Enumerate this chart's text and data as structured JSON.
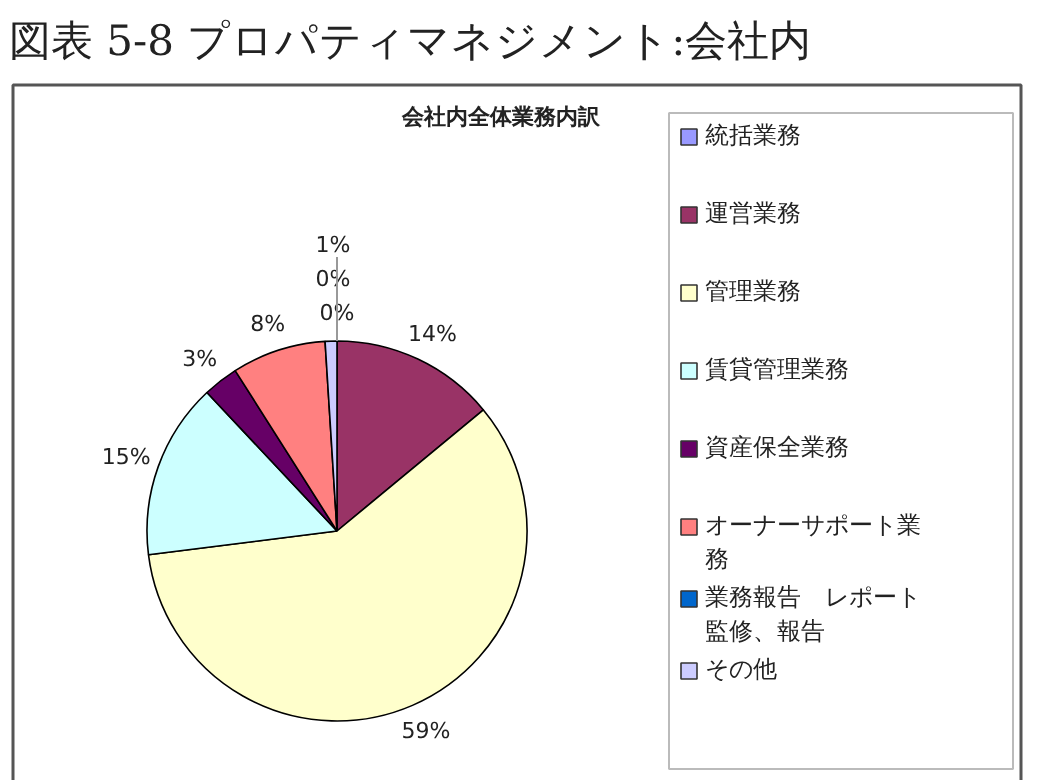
{
  "chart_data": {
    "type": "pie",
    "title": "会社内全体業務内訳",
    "subtitle": "図表 5-8 プロパティマネジメント:会社内",
    "categories": [
      "統括業務",
      "運営業務",
      "管理業務",
      "賃貸管理業務",
      "資産保全業務",
      "オーナーサポート業務",
      "業務報告　レポート監修、報告",
      "その他"
    ],
    "values": [
      0,
      14,
      59,
      15,
      3,
      8,
      0,
      1
    ],
    "colors": [
      "#9999ff",
      "#993366",
      "#ffffcc",
      "#ccffff",
      "#660066",
      "#ff8080",
      "#0066cc",
      "#ccccff"
    ],
    "value_labels": [
      "0%",
      "14%",
      "59%",
      "15%",
      "3%",
      "8%",
      "0%",
      "1%"
    ],
    "legend": "right"
  }
}
